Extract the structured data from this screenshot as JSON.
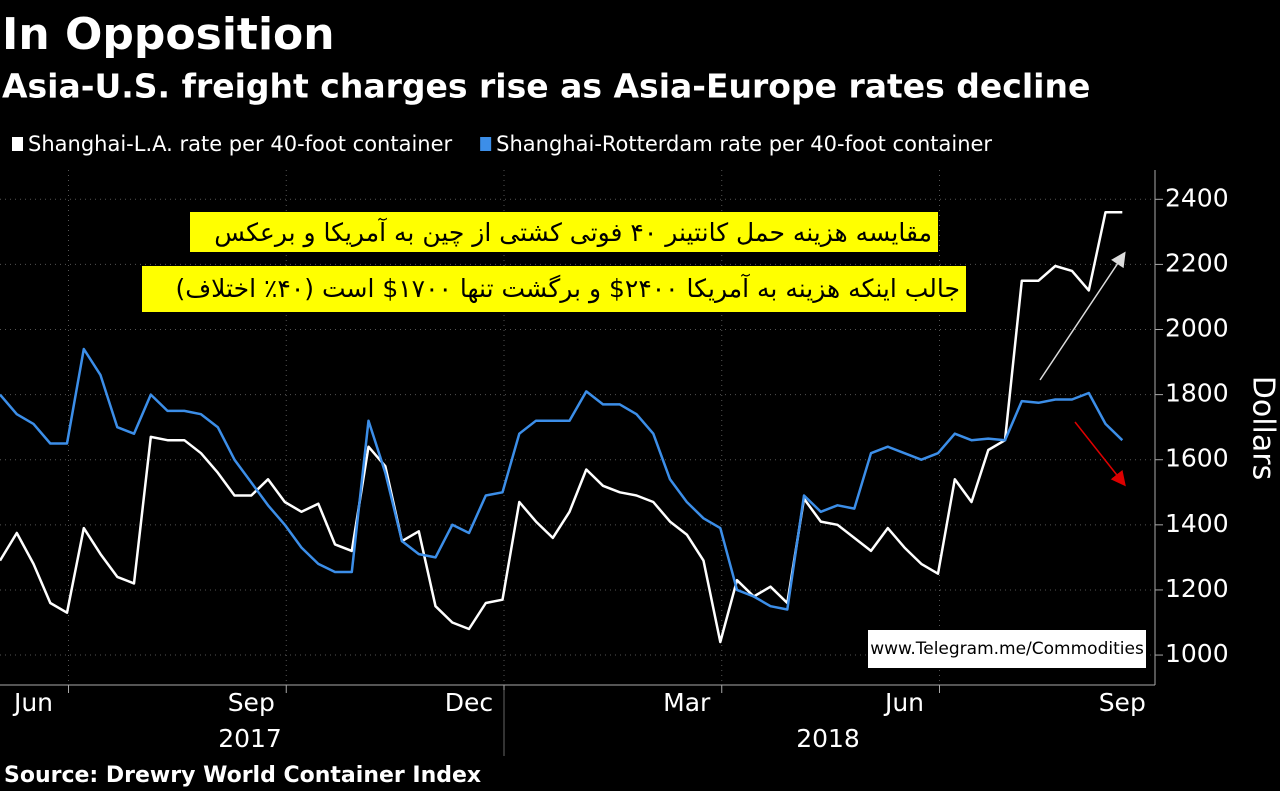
{
  "chart_data": {
    "type": "line",
    "title": "In Opposition",
    "subtitle": "Asia-U.S. freight charges rise as Asia-Europe rates decline",
    "y_label": "Dollars",
    "source": "Source: Drewry World Container Index",
    "annotation_lines": [
      "مقایسه هزینه حمل کانتینر ۴۰ فوتی کشتی از چین به آمریکا و برعکس",
      "جالب اینکه هزینه به آمریکا ۲۴۰۰$ و برگشت تنها ۱۷۰۰$ است (۴۰٪ اختلاف)"
    ],
    "watermark": "www.Telegram.me/Commodities",
    "year_labels": [
      "2017",
      "2018"
    ],
    "categories": [
      null,
      null,
      "Jun",
      null,
      null,
      null,
      null,
      null,
      null,
      null,
      null,
      null,
      null,
      null,
      null,
      "Sep",
      null,
      null,
      null,
      null,
      null,
      null,
      null,
      null,
      null,
      null,
      null,
      null,
      "Dec",
      null,
      null,
      null,
      null,
      null,
      null,
      null,
      null,
      null,
      null,
      null,
      null,
      "Mar",
      null,
      null,
      null,
      null,
      null,
      null,
      null,
      null,
      null,
      null,
      null,
      null,
      "Jun",
      null,
      null,
      null,
      null,
      null,
      null,
      null,
      null,
      null,
      null,
      null,
      null,
      "Sep"
    ],
    "series": [
      {
        "name": "Shanghai-L.A. rate per 40-foot container",
        "color": "#ffffff",
        "values": [
          1290,
          1375,
          1280,
          1160,
          1130,
          1390,
          1310,
          1240,
          1220,
          1670,
          1660,
          1660,
          1620,
          1560,
          1490,
          1490,
          1540,
          1470,
          1440,
          1465,
          1340,
          1320,
          1640,
          1580,
          1350,
          1380,
          1150,
          1100,
          1080,
          1160,
          1170,
          1470,
          1410,
          1360,
          1440,
          1570,
          1520,
          1500,
          1490,
          1470,
          1410,
          1370,
          1290,
          1040,
          1230,
          1180,
          1210,
          1160,
          1480,
          1410,
          1400,
          1360,
          1320,
          1390,
          1330,
          1280,
          1250,
          1540,
          1470,
          1630,
          1660,
          2150,
          2150,
          2195,
          2180,
          2120,
          2360,
          2360
        ]
      },
      {
        "name": "Shanghai-Rotterdam rate per 40-foot container",
        "color": "#3c8ee8",
        "values": [
          1800,
          1740,
          1710,
          1650,
          1650,
          1940,
          1860,
          1700,
          1680,
          1800,
          1750,
          1750,
          1740,
          1700,
          1600,
          1530,
          1460,
          1400,
          1330,
          1280,
          1255,
          1255,
          1720,
          1560,
          1350,
          1310,
          1300,
          1400,
          1375,
          1490,
          1500,
          1680,
          1720,
          1720,
          1720,
          1810,
          1770,
          1770,
          1740,
          1680,
          1540,
          1470,
          1420,
          1390,
          1200,
          1180,
          1150,
          1140,
          1490,
          1440,
          1460,
          1450,
          1620,
          1640,
          1620,
          1600,
          1620,
          1680,
          1660,
          1665,
          1660,
          1780,
          1775,
          1785,
          1785,
          1805,
          1710,
          1660
        ]
      }
    ],
    "ylim": [
      908,
      2490
    ],
    "yticks": [
      1000,
      1200,
      1400,
      1600,
      1800,
      2000,
      2200,
      2400
    ],
    "grid": true
  }
}
